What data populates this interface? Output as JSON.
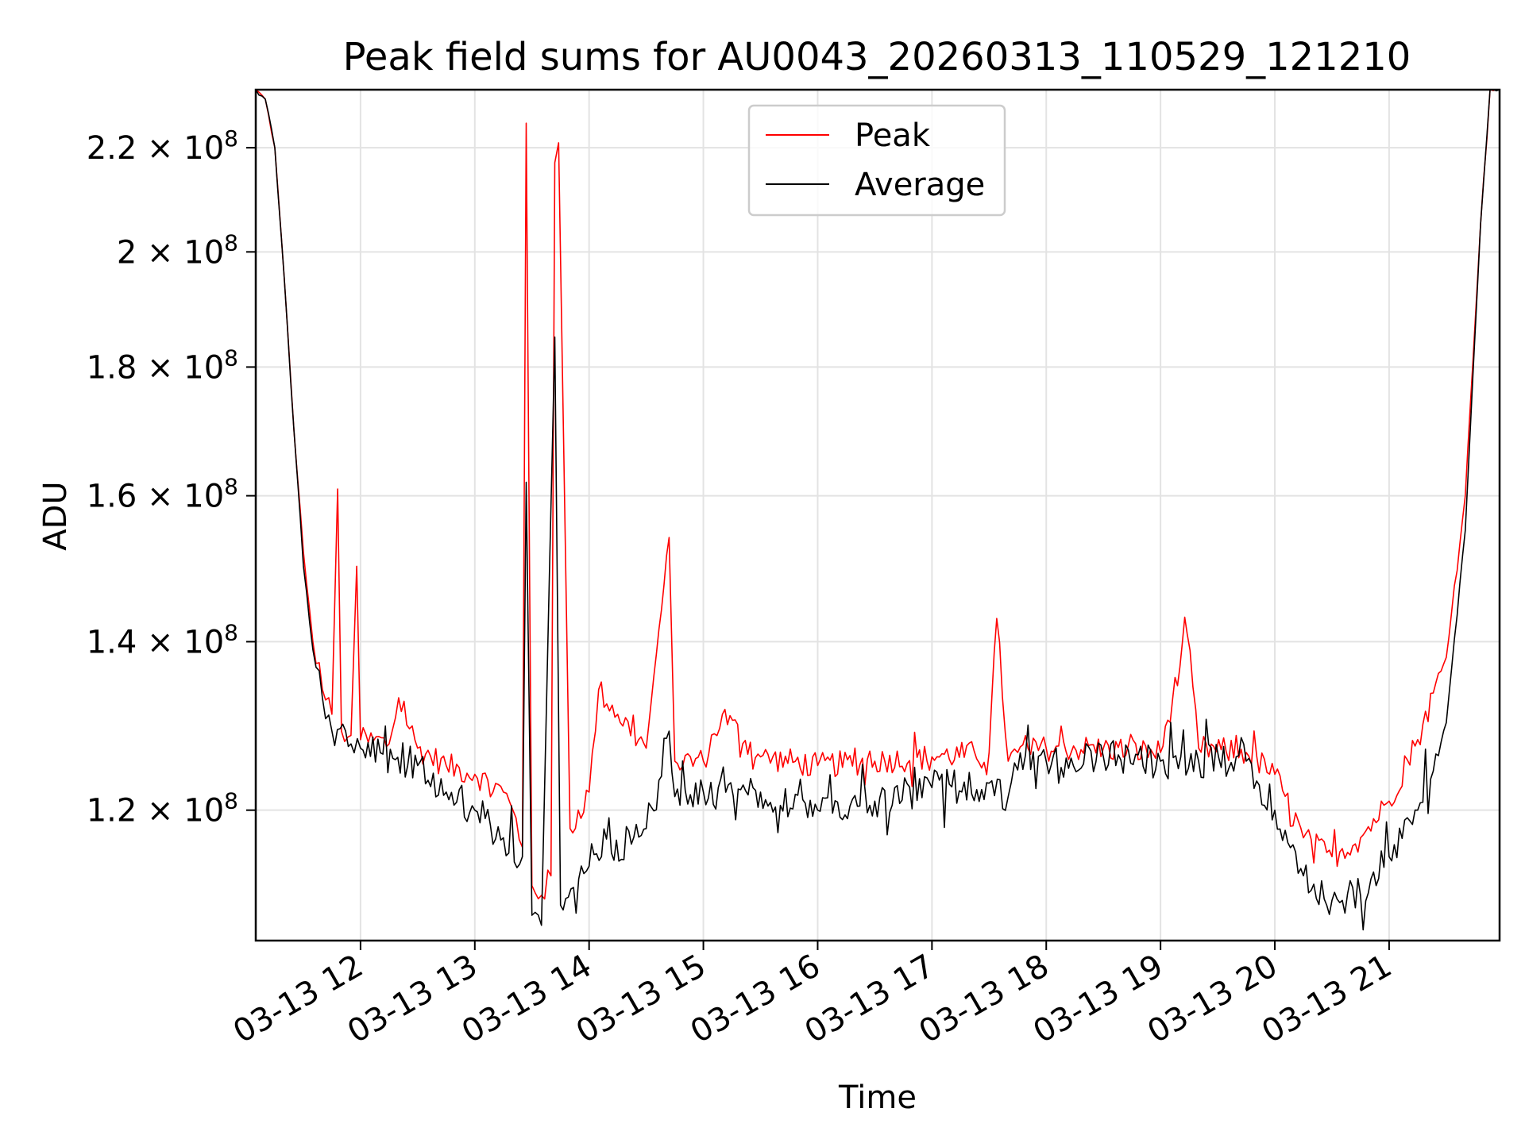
{
  "chart_data": {
    "type": "line",
    "title": "Peak field sums for AU0043_20260313_110529_121210",
    "xlabel": "Time",
    "ylabel": "ADU",
    "grid": true,
    "legend_placement": "top-center",
    "x_range": [
      "2026-03-13 11:05",
      "2026-03-13 21:58"
    ],
    "y_range": [
      106500000.0,
      232000000.0
    ],
    "y_scale": "log",
    "x_ticks": [
      "03-13 12",
      "03-13 13",
      "03-13 14",
      "03-13 15",
      "03-13 16",
      "03-13 17",
      "03-13 18",
      "03-13 19",
      "03-13 20",
      "03-13 21"
    ],
    "y_ticks": [
      {
        "value": 120000000.0,
        "mantissa": "1.2",
        "exp": "8"
      },
      {
        "value": 140000000.0,
        "mantissa": "1.4",
        "exp": "8"
      },
      {
        "value": 160000000.0,
        "mantissa": "1.6",
        "exp": "8"
      },
      {
        "value": 180000000.0,
        "mantissa": "1.8",
        "exp": "8"
      },
      {
        "value": 200000000.0,
        "mantissa": "2",
        "exp": "8"
      },
      {
        "value": 220000000.0,
        "mantissa": "2.2",
        "exp": "8"
      }
    ],
    "times_per_tick": "×10",
    "series": [
      {
        "name": "Peak",
        "color": "#ff0000",
        "points": [
          [
            "11:05",
            232000000.0
          ],
          [
            "11:10",
            230000000.0
          ],
          [
            "11:15",
            220000000.0
          ],
          [
            "11:20",
            195000000.0
          ],
          [
            "11:25",
            170000000.0
          ],
          [
            "11:30",
            152000000.0
          ],
          [
            "11:35",
            140000000.0
          ],
          [
            "11:40",
            134000000.0
          ],
          [
            "11:45",
            131000000.0
          ],
          [
            "11:48",
            161000000.0
          ],
          [
            "11:50",
            129000000.0
          ],
          [
            "11:55",
            128500000.0
          ],
          [
            "11:58",
            150000000.0
          ],
          [
            "12:00",
            128000000.0
          ],
          [
            "12:15",
            127500000.0
          ],
          [
            "12:20",
            133000000.0
          ],
          [
            "12:30",
            127000000.0
          ],
          [
            "12:45",
            125000000.0
          ],
          [
            "13:00",
            124000000.0
          ],
          [
            "13:15",
            122000000.0
          ],
          [
            "13:20",
            120000000.0
          ],
          [
            "13:25",
            116000000.0
          ],
          [
            "13:27",
            225000000.0
          ],
          [
            "13:30",
            112000000.0
          ],
          [
            "13:35",
            111000000.0
          ],
          [
            "13:40",
            113000000.0
          ],
          [
            "13:42",
            217000000.0
          ],
          [
            "13:44",
            221000000.0
          ],
          [
            "13:50",
            118000000.0
          ],
          [
            "14:00",
            122000000.0
          ],
          [
            "14:05",
            134000000.0
          ],
          [
            "14:15",
            131000000.0
          ],
          [
            "14:30",
            127000000.0
          ],
          [
            "14:42",
            154000000.0
          ],
          [
            "14:45",
            125500000.0
          ],
          [
            "15:00",
            125500000.0
          ],
          [
            "15:10",
            131000000.0
          ],
          [
            "15:30",
            126000000.0
          ],
          [
            "16:00",
            125000000.0
          ],
          [
            "16:30",
            125500000.0
          ],
          [
            "17:00",
            126000000.0
          ],
          [
            "17:30",
            126500000.0
          ],
          [
            "17:34",
            143000000.0
          ],
          [
            "17:40",
            125500000.0
          ],
          [
            "17:45",
            126500000.0
          ],
          [
            "18:00",
            127000000.0
          ],
          [
            "18:30",
            127000000.0
          ],
          [
            "19:00",
            126500000.0
          ],
          [
            "19:14",
            141000000.0
          ],
          [
            "19:20",
            127000000.0
          ],
          [
            "19:45",
            126500000.0
          ],
          [
            "20:00",
            124000000.0
          ],
          [
            "20:15",
            117000000.0
          ],
          [
            "20:30",
            115000000.0
          ],
          [
            "20:45",
            117000000.0
          ],
          [
            "21:00",
            121000000.0
          ],
          [
            "21:15",
            128000000.0
          ],
          [
            "21:30",
            138000000.0
          ],
          [
            "21:40",
            160000000.0
          ],
          [
            "21:48",
            205000000.0
          ],
          [
            "21:53",
            232000000.0
          ],
          [
            "21:58",
            232000000.0
          ]
        ]
      },
      {
        "name": "Average",
        "color": "#000000",
        "points": [
          [
            "11:05",
            232000000.0
          ],
          [
            "11:10",
            230000000.0
          ],
          [
            "11:15",
            220000000.0
          ],
          [
            "11:20",
            195000000.0
          ],
          [
            "11:25",
            170000000.0
          ],
          [
            "11:30",
            150000000.0
          ],
          [
            "11:35",
            139000000.0
          ],
          [
            "11:40",
            133000000.0
          ],
          [
            "11:45",
            129000000.0
          ],
          [
            "11:55",
            127500000.0
          ],
          [
            "12:00",
            127000000.0
          ],
          [
            "12:30",
            125000000.0
          ],
          [
            "12:45",
            122000000.0
          ],
          [
            "13:00",
            120000000.0
          ],
          [
            "13:15",
            117000000.0
          ],
          [
            "13:25",
            115000000.0
          ],
          [
            "13:27",
            162000000.0
          ],
          [
            "13:30",
            109000000.0
          ],
          [
            "13:35",
            108000000.0
          ],
          [
            "13:42",
            185000000.0
          ],
          [
            "13:45",
            110000000.0
          ],
          [
            "14:00",
            114000000.0
          ],
          [
            "14:30",
            118000000.0
          ],
          [
            "14:42",
            129000000.0
          ],
          [
            "14:45",
            121500000.0
          ],
          [
            "15:00",
            122000000.0
          ],
          [
            "15:30",
            122000000.0
          ],
          [
            "16:00",
            120000000.0
          ],
          [
            "16:30",
            121000000.0
          ],
          [
            "17:00",
            122500000.0
          ],
          [
            "17:30",
            123000000.0
          ],
          [
            "17:40",
            121500000.0
          ],
          [
            "17:45",
            124500000.0
          ],
          [
            "18:00",
            125500000.0
          ],
          [
            "18:30",
            126000000.0
          ],
          [
            "19:00",
            125500000.0
          ],
          [
            "19:20",
            125500000.0
          ],
          [
            "19:45",
            125500000.0
          ],
          [
            "20:00",
            120000000.0
          ],
          [
            "20:15",
            113000000.0
          ],
          [
            "20:30",
            110500000.0
          ],
          [
            "20:45",
            111000000.0
          ],
          [
            "21:00",
            115000000.0
          ],
          [
            "21:15",
            120000000.0
          ],
          [
            "21:30",
            130000000.0
          ],
          [
            "21:40",
            155000000.0
          ],
          [
            "21:48",
            205000000.0
          ],
          [
            "21:53",
            232000000.0
          ],
          [
            "21:58",
            232000000.0
          ]
        ]
      }
    ]
  }
}
